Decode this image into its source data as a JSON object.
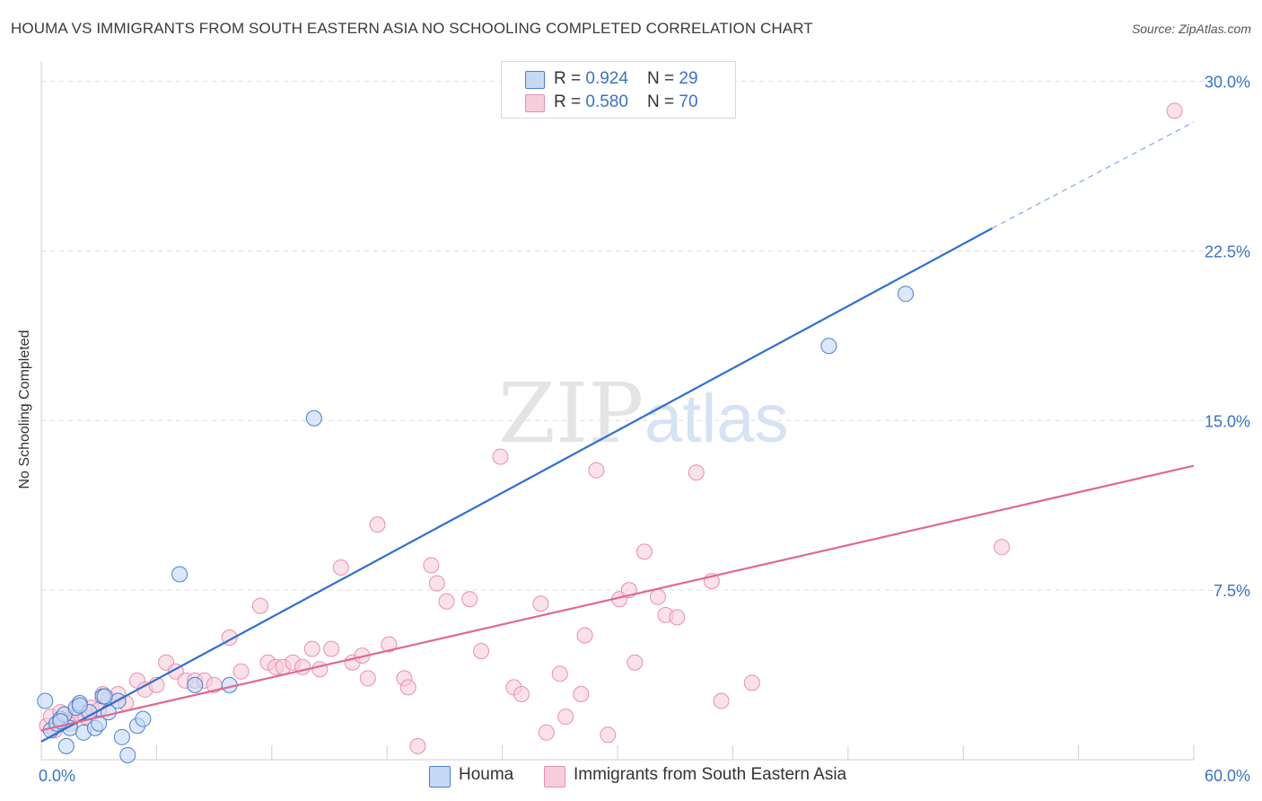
{
  "title": "HOUMA VS IMMIGRANTS FROM SOUTH EASTERN ASIA NO SCHOOLING COMPLETED CORRELATION CHART",
  "source": "Source: ZipAtlas.com",
  "watermark": {
    "zip": "ZIP",
    "atlas": "atlas"
  },
  "legend": {
    "rows": [
      {
        "r_label": "R = ",
        "r_value": "0.924",
        "n_label": "N = ",
        "n_value": "29"
      },
      {
        "r_label": "R = ",
        "r_value": "0.580",
        "n_label": "N = ",
        "n_value": "70"
      }
    ]
  },
  "colors": {
    "houma_fill": "#c5d9f5",
    "houma_stroke": "#4a7fd0",
    "houma_line": "#2f6fd0",
    "imm_fill": "#f8cddb",
    "imm_stroke": "#e890ad",
    "imm_line": "#e0698f",
    "grid": "#dddddd",
    "tick_label": "#3a72c4"
  },
  "chart_data": {
    "type": "scatter",
    "title": "HOUMA VS IMMIGRANTS FROM SOUTH EASTERN ASIA NO SCHOOLING COMPLETED CORRELATION CHART",
    "xlabel": "",
    "ylabel": "No Schooling Completed",
    "xlim": [
      0,
      60
    ],
    "ylim": [
      0,
      30.5
    ],
    "x_tick_labels": [
      "0.0%",
      "60.0%"
    ],
    "y_ticks": [
      7.5,
      15.0,
      22.5,
      30.0
    ],
    "y_tick_labels": [
      "7.5%",
      "15.0%",
      "22.5%",
      "30.0%"
    ],
    "grid": true,
    "legend_position": "top-center",
    "series": [
      {
        "name": "Houma",
        "r": 0.924,
        "n": 29,
        "points": [
          [
            0.2,
            2.6
          ],
          [
            0.5,
            1.3
          ],
          [
            0.8,
            1.6
          ],
          [
            1.0,
            1.8
          ],
          [
            1.2,
            2.0
          ],
          [
            1.3,
            0.6
          ],
          [
            1.5,
            1.4
          ],
          [
            1.8,
            2.3
          ],
          [
            2.0,
            2.5
          ],
          [
            2.2,
            1.2
          ],
          [
            2.5,
            2.1
          ],
          [
            2.8,
            1.4
          ],
          [
            3.0,
            1.6
          ],
          [
            3.2,
            2.8
          ],
          [
            3.5,
            2.1
          ],
          [
            4.0,
            2.6
          ],
          [
            4.2,
            1.0
          ],
          [
            4.5,
            0.2
          ],
          [
            5.0,
            1.5
          ],
          [
            5.3,
            1.8
          ],
          [
            7.2,
            8.2
          ],
          [
            8.0,
            3.3
          ],
          [
            9.8,
            3.3
          ],
          [
            14.2,
            15.1
          ],
          [
            41.0,
            18.3
          ],
          [
            45.0,
            20.6
          ],
          [
            3.3,
            2.8
          ],
          [
            2.0,
            2.4
          ],
          [
            1.0,
            1.7
          ]
        ],
        "trend": {
          "x0": 0.0,
          "y0": 0.8,
          "x1": 49.5,
          "y1": 23.5,
          "dash_to_x": 60.0,
          "dash_to_y": 28.2
        }
      },
      {
        "name": "Immigrants from South Eastern Asia",
        "r": 0.58,
        "n": 70,
        "points": [
          [
            0.3,
            1.5
          ],
          [
            0.5,
            1.9
          ],
          [
            0.7,
            1.3
          ],
          [
            1.0,
            2.1
          ],
          [
            1.2,
            1.7
          ],
          [
            1.5,
            1.6
          ],
          [
            1.8,
            2.2
          ],
          [
            2.0,
            2.0
          ],
          [
            2.3,
            1.9
          ],
          [
            2.6,
            2.3
          ],
          [
            3.0,
            2.2
          ],
          [
            3.2,
            2.9
          ],
          [
            3.5,
            2.7
          ],
          [
            4.0,
            2.9
          ],
          [
            4.4,
            2.5
          ],
          [
            5.0,
            3.5
          ],
          [
            5.4,
            3.1
          ],
          [
            6.0,
            3.3
          ],
          [
            6.5,
            4.3
          ],
          [
            7.0,
            3.9
          ],
          [
            7.5,
            3.5
          ],
          [
            8.0,
            3.5
          ],
          [
            8.5,
            3.5
          ],
          [
            9.0,
            3.3
          ],
          [
            9.8,
            5.4
          ],
          [
            10.4,
            3.9
          ],
          [
            11.4,
            6.8
          ],
          [
            11.8,
            4.3
          ],
          [
            12.2,
            4.1
          ],
          [
            12.6,
            4.1
          ],
          [
            13.1,
            4.3
          ],
          [
            13.6,
            4.1
          ],
          [
            14.1,
            4.9
          ],
          [
            14.5,
            4.0
          ],
          [
            15.1,
            4.9
          ],
          [
            15.6,
            8.5
          ],
          [
            16.2,
            4.3
          ],
          [
            16.7,
            4.6
          ],
          [
            17.0,
            3.6
          ],
          [
            17.5,
            10.4
          ],
          [
            18.1,
            5.1
          ],
          [
            18.9,
            3.6
          ],
          [
            19.1,
            3.2
          ],
          [
            19.6,
            0.6
          ],
          [
            20.3,
            8.6
          ],
          [
            20.6,
            7.8
          ],
          [
            21.1,
            7.0
          ],
          [
            22.3,
            7.1
          ],
          [
            22.9,
            4.8
          ],
          [
            23.9,
            13.4
          ],
          [
            24.6,
            3.2
          ],
          [
            25.0,
            2.9
          ],
          [
            26.0,
            6.9
          ],
          [
            26.3,
            1.2
          ],
          [
            27.0,
            3.8
          ],
          [
            27.3,
            1.9
          ],
          [
            28.1,
            2.9
          ],
          [
            28.3,
            5.5
          ],
          [
            28.9,
            12.8
          ],
          [
            29.5,
            1.1
          ],
          [
            30.1,
            7.1
          ],
          [
            30.6,
            7.5
          ],
          [
            30.9,
            4.3
          ],
          [
            31.4,
            9.2
          ],
          [
            32.1,
            7.2
          ],
          [
            32.5,
            6.4
          ],
          [
            33.1,
            6.3
          ],
          [
            34.1,
            12.7
          ],
          [
            34.9,
            7.9
          ],
          [
            35.4,
            2.6
          ]
        ],
        "trend": {
          "x0": 0.0,
          "y0": 1.3,
          "x1": 60.0,
          "y1": 13.0
        }
      }
    ]
  },
  "bottom_legend": {
    "items": [
      {
        "label": "Houma"
      },
      {
        "label": "Immigrants from South Eastern Asia"
      }
    ]
  }
}
